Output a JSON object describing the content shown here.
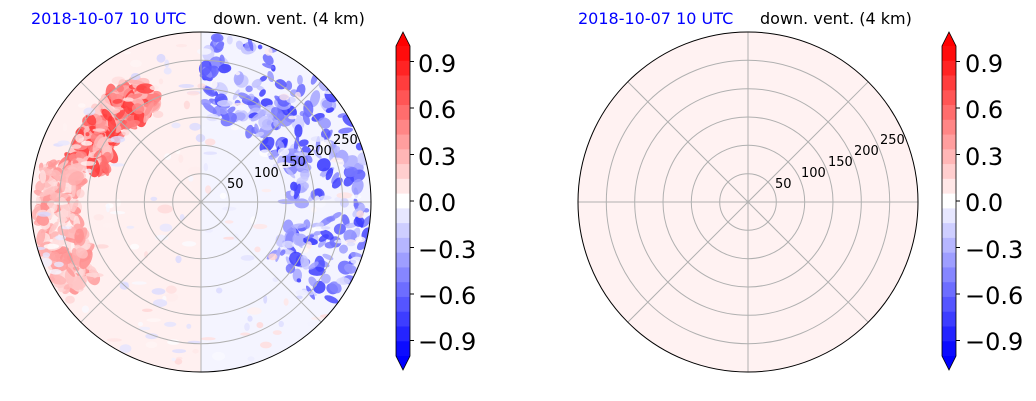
{
  "colors": {
    "positive": "#ff0000",
    "negative": "#0000ff",
    "neutral": "#f4f4ff",
    "date_text": "#0000ff",
    "grid": "#b0b0b0"
  },
  "chart_data": [
    {
      "type": "heatmap",
      "projection": "polar",
      "subplot": "left",
      "title_date": "2018-10-07 10 UTC",
      "title": "down. vent. (4 km)",
      "radial_ticks": [
        "50",
        "100",
        "150",
        "200",
        "250"
      ],
      "radial_tick_values": [
        50,
        100,
        150,
        200,
        250
      ],
      "r_max": 300,
      "angular_gridlines_deg": [
        0,
        45,
        90,
        135,
        180,
        225,
        270,
        315
      ],
      "grid": true,
      "field_description": "noisy field: positive arc band in northwest quadrant, negative speckles in east/northeast, near-zero elsewhere",
      "features": [
        {
          "sign": "positive",
          "strength": 0.7,
          "angle_from_deg": 115,
          "angle_to_deg": 165,
          "r_from": 180,
          "r_to": 250
        },
        {
          "sign": "positive",
          "strength": 0.4,
          "angle_from_deg": 165,
          "angle_to_deg": 215,
          "r_from": 220,
          "r_to": 290
        },
        {
          "sign": "negative",
          "strength": 0.7,
          "angle_from_deg": -40,
          "angle_to_deg": 90,
          "r_from": 150,
          "r_to": 300
        }
      ],
      "colorbar": {
        "ticks": [
          "0.9",
          "0.6",
          "0.3",
          "0.0",
          "−0.3",
          "−0.6",
          "−0.9"
        ],
        "tick_values": [
          0.9,
          0.6,
          0.3,
          0.0,
          -0.3,
          -0.6,
          -0.9
        ],
        "vmin": -1.0,
        "vmax": 1.0,
        "levels": 21,
        "extend": "both",
        "cmap": "bwr"
      }
    },
    {
      "type": "heatmap",
      "projection": "polar",
      "subplot": "right",
      "title_date": "2018-10-07 10 UTC",
      "title": "down. vent. (4 km)",
      "radial_ticks": [
        "50",
        "100",
        "150",
        "200",
        "250"
      ],
      "radial_tick_values": [
        50,
        100,
        150,
        200,
        250
      ],
      "r_max": 300,
      "angular_gridlines_deg": [
        0,
        45,
        90,
        135,
        180,
        225,
        270,
        315
      ],
      "grid": true,
      "field_description": "uniform near-zero positive value",
      "uniform_value": 0.05,
      "colorbar": {
        "ticks": [
          "0.9",
          "0.6",
          "0.3",
          "0.0",
          "−0.3",
          "−0.6",
          "−0.9"
        ],
        "tick_values": [
          0.9,
          0.6,
          0.3,
          0.0,
          -0.3,
          -0.6,
          -0.9
        ],
        "vmin": -1.0,
        "vmax": 1.0,
        "levels": 21,
        "extend": "both",
        "cmap": "bwr"
      }
    }
  ]
}
